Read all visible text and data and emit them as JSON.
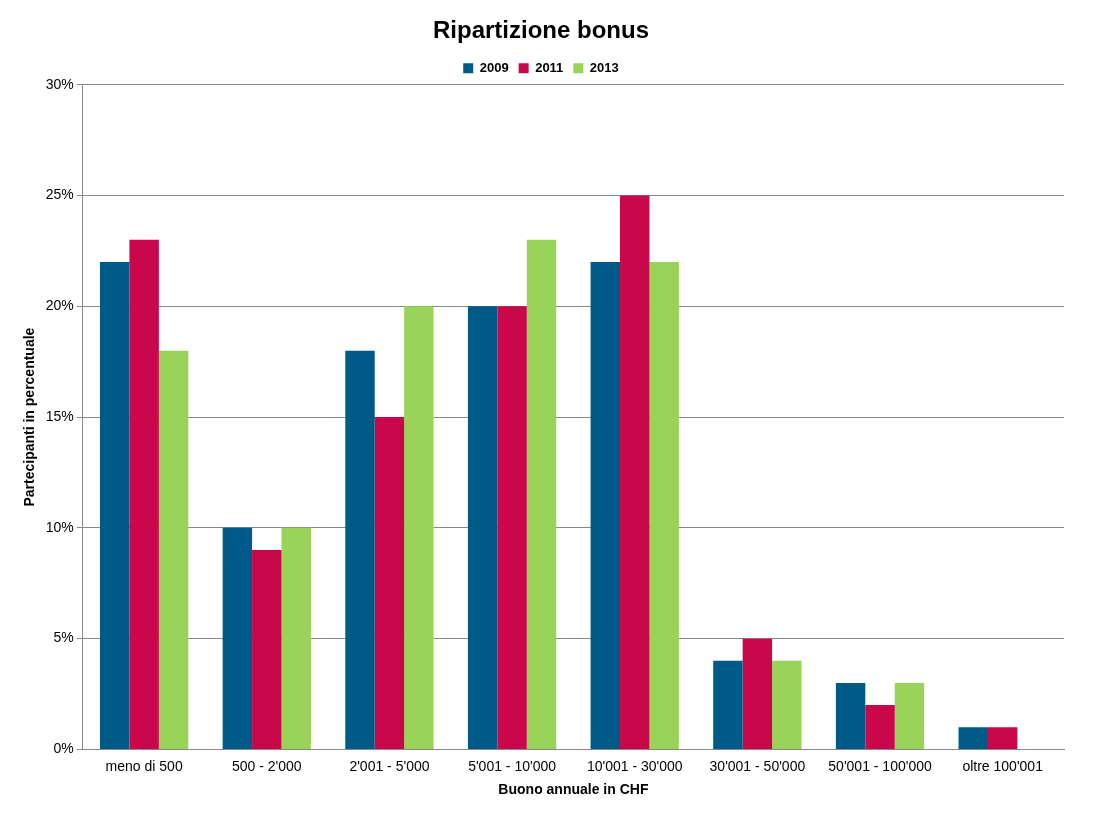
{
  "chart_data": {
    "type": "bar",
    "title": "Ripartizione bonus",
    "xlabel": "Buono annuale in CHF",
    "ylabel": "Partecipanti in percentuale",
    "categories": [
      "meno di 500",
      "500 - 2'000",
      "2'001 - 5'000",
      "5'001 - 10'000",
      "10'001 - 30'000",
      "30'001 - 50'000",
      "50'001 - 100'000",
      "oltre 100'001"
    ],
    "series": [
      {
        "name": "2009",
        "color": "#005a87",
        "values": [
          22,
          10,
          18,
          20,
          22,
          4,
          3,
          1
        ]
      },
      {
        "name": "2011",
        "color": "#c8084a",
        "values": [
          23,
          9,
          15,
          20,
          25,
          5,
          2,
          1
        ]
      },
      {
        "name": "2013",
        "color": "#99d35a",
        "values": [
          18,
          10,
          20,
          23,
          22,
          4,
          3,
          0
        ]
      }
    ],
    "ylim": [
      0,
      30
    ],
    "yticks": [
      {
        "value": 0,
        "label": "0%"
      },
      {
        "value": 5,
        "label": "5%"
      },
      {
        "value": 10,
        "label": "10%"
      },
      {
        "value": 15,
        "label": "15%"
      },
      {
        "value": 20,
        "label": "20%"
      },
      {
        "value": 25,
        "label": "25%"
      },
      {
        "value": 30,
        "label": "30%"
      }
    ],
    "grid": "y",
    "legend": "top"
  }
}
